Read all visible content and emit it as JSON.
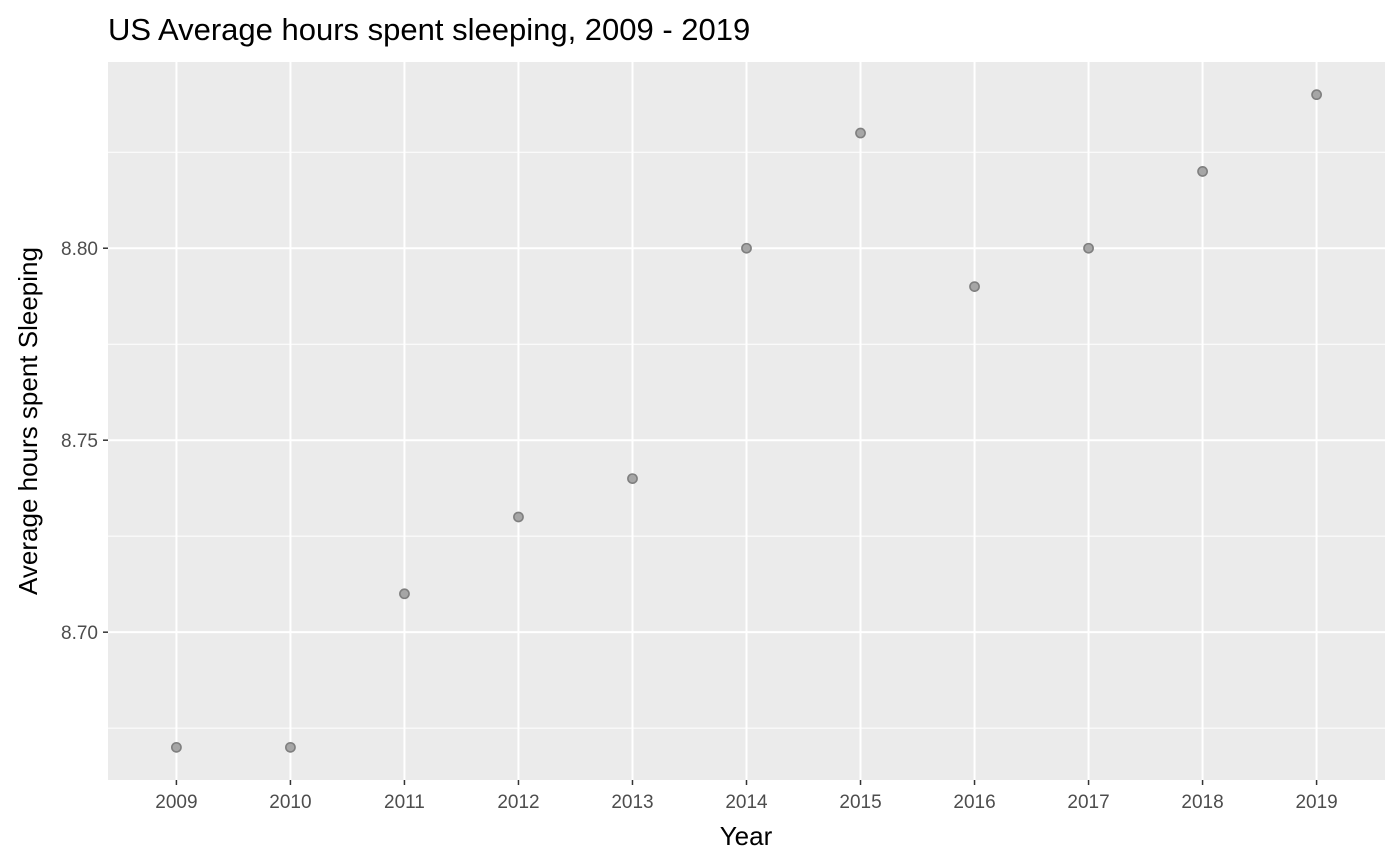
{
  "chart_data": {
    "type": "scatter",
    "title": "US Average hours spent sleeping, 2009 - 2019",
    "xlabel": "Year",
    "ylabel": "Average hours spent Sleeping",
    "x": [
      2009,
      2010,
      2011,
      2012,
      2013,
      2014,
      2015,
      2016,
      2017,
      2018,
      2019
    ],
    "y": [
      8.67,
      8.67,
      8.71,
      8.73,
      8.74,
      8.8,
      8.83,
      8.79,
      8.8,
      8.82,
      8.84
    ],
    "x_tick_labels": [
      "2009",
      "2010",
      "2011",
      "2012",
      "2013",
      "2014",
      "2015",
      "2016",
      "2017",
      "2018",
      "2019"
    ],
    "y_ticks": [
      8.7,
      8.75,
      8.8
    ],
    "y_tick_labels": [
      "8.70",
      "8.75",
      "8.80"
    ],
    "y_minor_ticks": [
      8.675,
      8.725,
      8.775,
      8.825
    ],
    "xlim": [
      2008.4,
      2019.6
    ],
    "ylim": [
      8.6615,
      8.8485
    ],
    "grid": true,
    "colors": {
      "panel_background": "#ebebeb",
      "grid": "#ffffff",
      "point_fill": "#a6a6a6",
      "point_stroke": "#7f7f7f",
      "tick_label": "#4d4d4d",
      "tick_mark": "#333333",
      "text": "#000000"
    }
  }
}
